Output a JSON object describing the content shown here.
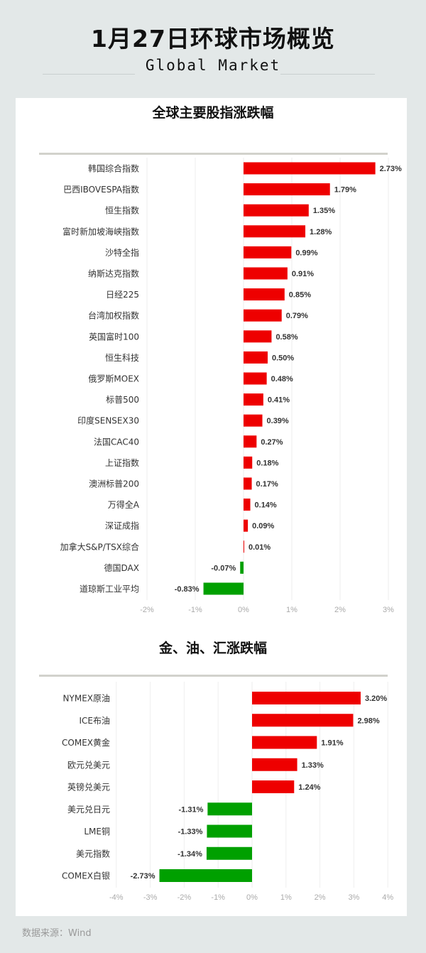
{
  "header": {
    "title": "1月27日环球市场概览",
    "subtitle": "Global Market"
  },
  "colors": {
    "up": "#ee0000",
    "down": "#00a000",
    "background": "#e3e8e8"
  },
  "chart_data": [
    {
      "type": "bar",
      "orientation": "horizontal",
      "title": "全球主要股指涨跌幅",
      "categories": [
        "韩国综合指数",
        "巴西IBOVESPA指数",
        "恒生指数",
        "富时新加坡海峡指数",
        "沙特全指",
        "纳斯达克指数",
        "日经225",
        "台湾加权指数",
        "英国富时100",
        "恒生科技",
        "俄罗斯MOEX",
        "标普500",
        "印度SENSEX30",
        "法国CAC40",
        "上证指数",
        "澳洲标普200",
        "万得全A",
        "深证成指",
        "加拿大S&P/TSX综合",
        "德国DAX",
        "道琼斯工业平均"
      ],
      "values": [
        2.73,
        1.79,
        1.35,
        1.28,
        0.99,
        0.91,
        0.85,
        0.79,
        0.58,
        0.5,
        0.48,
        0.41,
        0.39,
        0.27,
        0.18,
        0.17,
        0.14,
        0.09,
        0.01,
        -0.07,
        -0.83
      ],
      "data_labels": [
        "2.73%",
        "1.79%",
        "1.35%",
        "1.28%",
        "0.99%",
        "0.91%",
        "0.85%",
        "0.79%",
        "0.58%",
        "0.50%",
        "0.48%",
        "0.41%",
        "0.39%",
        "0.27%",
        "0.18%",
        "0.17%",
        "0.14%",
        "0.09%",
        "0.01%",
        "-0.07%",
        "-0.83%"
      ],
      "xlim": [
        -2,
        3
      ],
      "xticks": [
        "-2%",
        "-1%",
        "0%",
        "1%",
        "2%",
        "3%"
      ],
      "grid": true,
      "unit": "%"
    },
    {
      "type": "bar",
      "orientation": "horizontal",
      "title": "金、油、汇涨跌幅",
      "categories": [
        "NYMEX原油",
        "ICE布油",
        "COMEX黄金",
        "欧元兑美元",
        "英镑兑美元",
        "美元兑日元",
        "LME铜",
        "美元指数",
        "COMEX白银"
      ],
      "values": [
        3.2,
        2.98,
        1.91,
        1.33,
        1.24,
        -1.31,
        -1.33,
        -1.34,
        -2.73
      ],
      "data_labels": [
        "3.20%",
        "2.98%",
        "1.91%",
        "1.33%",
        "1.24%",
        "-1.31%",
        "-1.33%",
        "-1.34%",
        "-2.73%"
      ],
      "xlim": [
        -4,
        4
      ],
      "xticks": [
        "-4%",
        "-3%",
        "-2%",
        "-1%",
        "0%",
        "1%",
        "2%",
        "3%",
        "4%"
      ],
      "grid": true,
      "unit": "%"
    }
  ],
  "footer": {
    "source": "数据来源：Wind"
  }
}
